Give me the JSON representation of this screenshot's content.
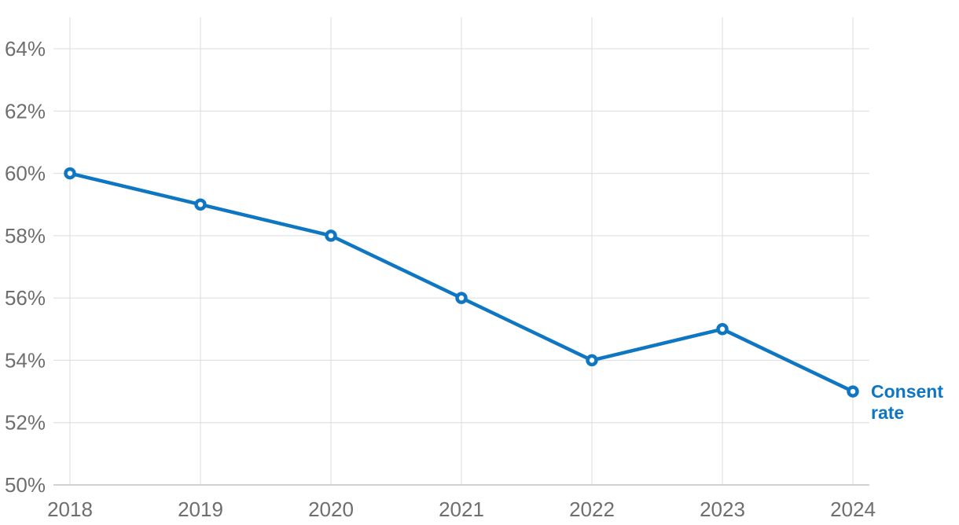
{
  "chart_data": {
    "type": "line",
    "x": [
      "2018",
      "2019",
      "2020",
      "2021",
      "2022",
      "2023",
      "2024"
    ],
    "series": [
      {
        "name": "Consent rate",
        "values": [
          60,
          59,
          58,
          56,
          54,
          55,
          53
        ]
      }
    ],
    "title": "",
    "xlabel": "",
    "ylabel": "",
    "ylim": [
      50,
      65
    ],
    "yticks": [
      50,
      52,
      54,
      56,
      58,
      60,
      62,
      64
    ],
    "ytick_suffix": "%",
    "grid": true,
    "legend_position": "end-of-line",
    "end_label_lines": [
      "Consent",
      "rate"
    ],
    "colors": {
      "line": "#0e76c2",
      "marker_fill": "#ffffff",
      "grid": "#dcdcdc",
      "axis": "#c4c4c4",
      "tick_label": "#6e6e6e"
    }
  }
}
